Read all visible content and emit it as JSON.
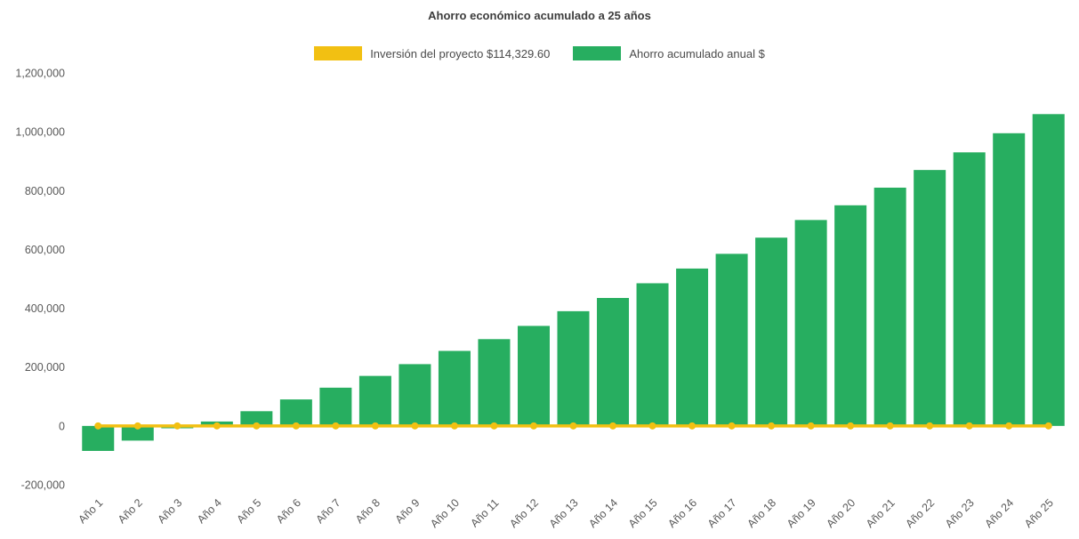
{
  "chart_data": {
    "type": "bar",
    "title": "Ahorro económico acumulado a 25 años",
    "categories": [
      "Año 1",
      "Año 2",
      "Año 3",
      "Año 4",
      "Año 5",
      "Año 6",
      "Año 7",
      "Año 8",
      "Año 9",
      "Año 10",
      "Año 11",
      "Año 12",
      "Año 13",
      "Año 14",
      "Año 15",
      "Año 16",
      "Año 17",
      "Año 18",
      "Año 19",
      "Año 20",
      "Año 21",
      "Año 22",
      "Año 23",
      "Año 24",
      "Año 25"
    ],
    "series": [
      {
        "name": "Inversión del proyecto $114,329.60",
        "type": "line",
        "color": "#F2C012",
        "values": [
          0,
          0,
          0,
          0,
          0,
          0,
          0,
          0,
          0,
          0,
          0,
          0,
          0,
          0,
          0,
          0,
          0,
          0,
          0,
          0,
          0,
          0,
          0,
          0,
          0
        ]
      },
      {
        "name": "Ahorro acumulado anual $",
        "type": "bar",
        "color": "#27AE60",
        "values": [
          -85000,
          -50000,
          -8000,
          15000,
          50000,
          90000,
          130000,
          170000,
          210000,
          255000,
          295000,
          340000,
          390000,
          435000,
          485000,
          535000,
          585000,
          640000,
          700000,
          750000,
          810000,
          870000,
          930000,
          995000,
          1060000
        ]
      }
    ],
    "ylim": [
      -200000,
      1200000
    ],
    "ytick_step": 200000,
    "grid": false,
    "legend_position": "top",
    "investment_amount_label": "$114,329.60"
  }
}
